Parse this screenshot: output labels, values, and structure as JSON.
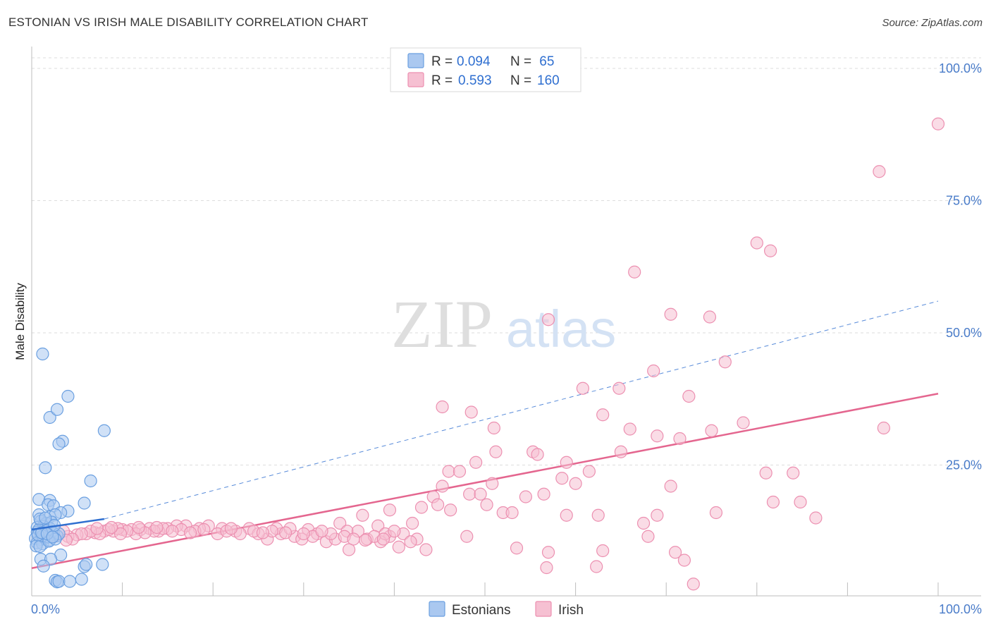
{
  "title": "ESTONIAN VS IRISH MALE DISABILITY CORRELATION CHART",
  "source": "Source: ZipAtlas.com",
  "watermark": {
    "zip": "ZIP",
    "atlas": "atlas"
  },
  "colors": {
    "estonian_fill": "#aac8f0",
    "estonian_stroke": "#6a9fe0",
    "estonian_line": "#2f6fd0",
    "irish_fill": "#f6c0d2",
    "irish_stroke": "#ec8fb0",
    "irish_line": "#e4668f",
    "tick_text": "#4a7cc9"
  },
  "legend_top": [
    {
      "r_label": "R = ",
      "r_value": "0.094",
      "n_label": "N = ",
      "n_value": " 65"
    },
    {
      "r_label": "R = ",
      "r_value": "0.593",
      "n_label": "N = ",
      "n_value": "160"
    }
  ],
  "chart_data": {
    "type": "scatter",
    "xlabel": "",
    "ylabel": "Male Disability",
    "xlim": [
      0,
      100
    ],
    "ylim": [
      0,
      100
    ],
    "x_tick_labels": [
      "0.0%",
      "100.0%"
    ],
    "y_tick_labels": [
      "25.0%",
      "50.0%",
      "75.0%",
      "100.0%"
    ],
    "y_tick_values": [
      25,
      50,
      75,
      100
    ],
    "grid": true,
    "legend_position": "bottom-center",
    "series": [
      {
        "name": "Estonians",
        "r": 0.094,
        "n": 65,
        "trend_solid": [
          [
            0,
            12.8
          ],
          [
            8.0,
            14.8
          ]
        ],
        "trend_dashed": [
          [
            8.0,
            14.8
          ],
          [
            100,
            56.0
          ]
        ],
        "points": [
          [
            1.2,
            46.0
          ],
          [
            2.0,
            34.0
          ],
          [
            2.8,
            35.5
          ],
          [
            4.0,
            38.0
          ],
          [
            8.0,
            31.5
          ],
          [
            3.4,
            29.5
          ],
          [
            3.0,
            29.0
          ],
          [
            1.5,
            24.5
          ],
          [
            6.5,
            22.0
          ],
          [
            0.8,
            18.5
          ],
          [
            2.0,
            18.3
          ],
          [
            1.8,
            17.5
          ],
          [
            2.4,
            17.3
          ],
          [
            5.8,
            17.8
          ],
          [
            4.0,
            16.3
          ],
          [
            3.2,
            16.0
          ],
          [
            0.8,
            15.6
          ],
          [
            2.0,
            15.2
          ],
          [
            2.6,
            15.6
          ],
          [
            1.0,
            14.4
          ],
          [
            1.6,
            14.0
          ],
          [
            2.2,
            14.2
          ],
          [
            0.6,
            13.2
          ],
          [
            1.3,
            13.4
          ],
          [
            2.0,
            13.0
          ],
          [
            0.6,
            12.3
          ],
          [
            1.0,
            12.0
          ],
          [
            1.6,
            11.8
          ],
          [
            2.4,
            12.2
          ],
          [
            2.8,
            11.6
          ],
          [
            0.4,
            11.1
          ],
          [
            1.0,
            10.9
          ],
          [
            1.4,
            11.2
          ],
          [
            0.6,
            10.3
          ],
          [
            1.2,
            10.1
          ],
          [
            0.5,
            9.7
          ],
          [
            0.9,
            9.6
          ],
          [
            2.0,
            10.8
          ],
          [
            1.8,
            11.4
          ],
          [
            0.8,
            12.8
          ],
          [
            1.6,
            12.6
          ],
          [
            2.2,
            12.4
          ],
          [
            3.0,
            12.0
          ],
          [
            1.2,
            11.6
          ],
          [
            0.7,
            11.8
          ],
          [
            1.9,
            10.6
          ],
          [
            2.6,
            11.0
          ],
          [
            3.2,
            8.0
          ],
          [
            1.0,
            7.2
          ],
          [
            2.1,
            7.2
          ],
          [
            1.3,
            5.9
          ],
          [
            5.8,
            5.8
          ],
          [
            6.0,
            6.2
          ],
          [
            7.8,
            6.2
          ],
          [
            2.6,
            3.2
          ],
          [
            2.8,
            2.9
          ],
          [
            3.0,
            3.0
          ],
          [
            4.2,
            3.0
          ],
          [
            5.5,
            3.4
          ],
          [
            0.9,
            14.8
          ],
          [
            1.5,
            15.0
          ],
          [
            2.5,
            13.6
          ],
          [
            1.1,
            12.2
          ],
          [
            1.7,
            12.0
          ],
          [
            2.3,
            11.4
          ]
        ]
      },
      {
        "name": "Irish",
        "r": 0.593,
        "n": 160,
        "trend_solid": [
          [
            0,
            5.5
          ],
          [
            100,
            38.5
          ]
        ],
        "points": [
          [
            100,
            89.5
          ],
          [
            93.5,
            80.5
          ],
          [
            80.0,
            67.0
          ],
          [
            81.5,
            65.5
          ],
          [
            66.5,
            61.5
          ],
          [
            57.0,
            52.5
          ],
          [
            70.5,
            53.5
          ],
          [
            74.8,
            53.0
          ],
          [
            68.6,
            42.8
          ],
          [
            76.5,
            44.5
          ],
          [
            72.5,
            38.0
          ],
          [
            60.8,
            39.5
          ],
          [
            64.8,
            39.5
          ],
          [
            94.0,
            32.0
          ],
          [
            45.3,
            36.0
          ],
          [
            48.5,
            35.0
          ],
          [
            63.0,
            34.5
          ],
          [
            51.0,
            32.0
          ],
          [
            66.0,
            31.8
          ],
          [
            69.0,
            30.5
          ],
          [
            71.5,
            30.0
          ],
          [
            75.0,
            31.5
          ],
          [
            78.5,
            33.0
          ],
          [
            51.2,
            27.5
          ],
          [
            55.3,
            27.5
          ],
          [
            55.8,
            27.0
          ],
          [
            65.0,
            27.5
          ],
          [
            49.0,
            25.5
          ],
          [
            59.0,
            25.5
          ],
          [
            46.0,
            23.8
          ],
          [
            47.2,
            23.8
          ],
          [
            61.5,
            23.8
          ],
          [
            81.0,
            23.5
          ],
          [
            84.0,
            23.5
          ],
          [
            45.3,
            21.0
          ],
          [
            50.8,
            21.5
          ],
          [
            58.5,
            22.5
          ],
          [
            60.0,
            21.5
          ],
          [
            70.5,
            21.0
          ],
          [
            44.3,
            19.0
          ],
          [
            48.3,
            19.5
          ],
          [
            49.5,
            19.5
          ],
          [
            54.5,
            19.0
          ],
          [
            56.5,
            19.5
          ],
          [
            81.8,
            18.0
          ],
          [
            84.8,
            18.0
          ],
          [
            43.0,
            17.0
          ],
          [
            44.8,
            17.5
          ],
          [
            46.2,
            16.5
          ],
          [
            50.2,
            17.5
          ],
          [
            39.5,
            16.5
          ],
          [
            36.5,
            15.5
          ],
          [
            52.0,
            16.0
          ],
          [
            53.0,
            16.0
          ],
          [
            59.0,
            15.5
          ],
          [
            62.5,
            15.5
          ],
          [
            69.0,
            15.5
          ],
          [
            75.5,
            16.0
          ],
          [
            86.5,
            15.0
          ],
          [
            34.0,
            14.0
          ],
          [
            38.2,
            13.5
          ],
          [
            42.0,
            14.0
          ],
          [
            67.5,
            14.0
          ],
          [
            39.5,
            11.5
          ],
          [
            41.0,
            12.0
          ],
          [
            42.5,
            11.0
          ],
          [
            48.0,
            11.5
          ],
          [
            68.0,
            11.5
          ],
          [
            37.0,
            11.0
          ],
          [
            38.5,
            10.5
          ],
          [
            32.5,
            10.5
          ],
          [
            34.8,
            12.5
          ],
          [
            36.0,
            12.5
          ],
          [
            33.5,
            11.0
          ],
          [
            35.0,
            9.0
          ],
          [
            40.5,
            9.5
          ],
          [
            57.0,
            8.5
          ],
          [
            63.0,
            8.8
          ],
          [
            71.0,
            8.5
          ],
          [
            72.0,
            7.0
          ],
          [
            53.5,
            9.3
          ],
          [
            56.8,
            5.6
          ],
          [
            62.3,
            5.8
          ],
          [
            73.0,
            2.5
          ],
          [
            26.0,
            11.0
          ],
          [
            27.5,
            12.0
          ],
          [
            29.0,
            11.5
          ],
          [
            30.5,
            12.8
          ],
          [
            31.5,
            12.0
          ],
          [
            28.5,
            13.0
          ],
          [
            24.0,
            13.0
          ],
          [
            22.5,
            12.5
          ],
          [
            21.0,
            13.0
          ],
          [
            19.5,
            13.5
          ],
          [
            18.5,
            13.0
          ],
          [
            17.0,
            13.5
          ],
          [
            16.0,
            13.5
          ],
          [
            15.0,
            13.0
          ],
          [
            14.0,
            12.5
          ],
          [
            13.0,
            13.0
          ],
          [
            12.0,
            12.8
          ],
          [
            11.0,
            12.8
          ],
          [
            10.0,
            12.8
          ],
          [
            9.0,
            12.5
          ],
          [
            8.0,
            12.5
          ],
          [
            7.0,
            12.2
          ],
          [
            6.0,
            12.0
          ],
          [
            5.0,
            11.8
          ],
          [
            4.0,
            11.5
          ],
          [
            3.0,
            12.0
          ],
          [
            2.5,
            11.5
          ],
          [
            20.5,
            12.0
          ],
          [
            23.0,
            12.0
          ],
          [
            25.0,
            12.0
          ],
          [
            27.0,
            13.0
          ],
          [
            29.8,
            11.0
          ],
          [
            31.0,
            11.5
          ],
          [
            33.0,
            12.0
          ],
          [
            34.5,
            11.5
          ],
          [
            35.5,
            11.0
          ],
          [
            37.8,
            11.5
          ],
          [
            39.0,
            12.0
          ],
          [
            40.0,
            12.5
          ],
          [
            41.8,
            10.5
          ],
          [
            43.5,
            9.0
          ],
          [
            36.8,
            10.8
          ],
          [
            38.8,
            11.0
          ],
          [
            26.5,
            12.5
          ],
          [
            18.0,
            12.5
          ],
          [
            16.5,
            12.8
          ],
          [
            14.5,
            13.0
          ],
          [
            13.5,
            12.5
          ],
          [
            11.5,
            12.0
          ],
          [
            10.5,
            12.5
          ],
          [
            9.5,
            13.0
          ],
          [
            8.5,
            12.8
          ],
          [
            7.5,
            12.0
          ],
          [
            6.5,
            12.5
          ],
          [
            5.5,
            12.0
          ],
          [
            4.5,
            11.0
          ],
          [
            3.5,
            12.5
          ],
          [
            19.0,
            12.8
          ],
          [
            21.5,
            12.5
          ],
          [
            22.0,
            13.0
          ],
          [
            24.5,
            12.5
          ],
          [
            25.5,
            12.2
          ],
          [
            28.0,
            12.2
          ],
          [
            30.0,
            12.0
          ],
          [
            32.0,
            12.5
          ],
          [
            17.5,
            12.2
          ],
          [
            15.5,
            12.5
          ],
          [
            12.5,
            12.2
          ],
          [
            9.8,
            12.0
          ],
          [
            13.8,
            13.2
          ],
          [
            11.8,
            13.2
          ],
          [
            8.8,
            13.2
          ],
          [
            7.2,
            13.0
          ],
          [
            3.8,
            10.8
          ]
        ]
      }
    ]
  }
}
